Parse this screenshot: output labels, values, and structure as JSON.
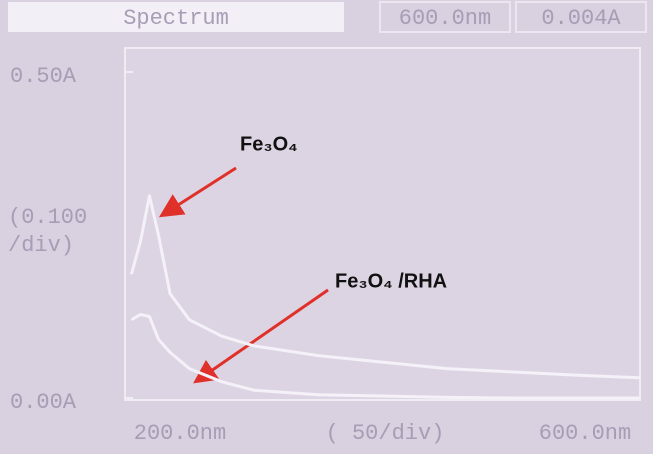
{
  "chart_data": {
    "type": "line",
    "title": "Spectrum",
    "readouts": [
      "600.0nm",
      "0.004A"
    ],
    "x": [
      205,
      212,
      219,
      226,
      235,
      250,
      275,
      300,
      350,
      400,
      450,
      500,
      550,
      600
    ],
    "series": [
      {
        "name": "Fe₃O₄",
        "color": "#f4f1f8",
        "values": [
          0.19,
          0.24,
          0.31,
          0.25,
          0.16,
          0.12,
          0.095,
          0.08,
          0.065,
          0.055,
          0.045,
          0.04,
          0.035,
          0.031
        ]
      },
      {
        "name": "Fe₃O₄ /RHA",
        "color": "#f4f1f8",
        "values": [
          0.12,
          0.128,
          0.125,
          0.09,
          0.07,
          0.045,
          0.025,
          0.012,
          0.005,
          0.003,
          0.001,
          0,
          0,
          0
        ]
      }
    ],
    "xlim": [
      200,
      600
    ],
    "xticks": [
      {
        "value": 200,
        "label": "200.0nm"
      },
      {
        "value": 600,
        "label": "600.0nm"
      }
    ],
    "ylim": [
      0,
      0.5
    ],
    "yticks": [
      {
        "value": 0,
        "label": "0.00A"
      },
      {
        "value": 0.5,
        "label": "0.50A"
      }
    ],
    "x_division": "( 50/div)",
    "y_division": "(0.100 /div)"
  }
}
